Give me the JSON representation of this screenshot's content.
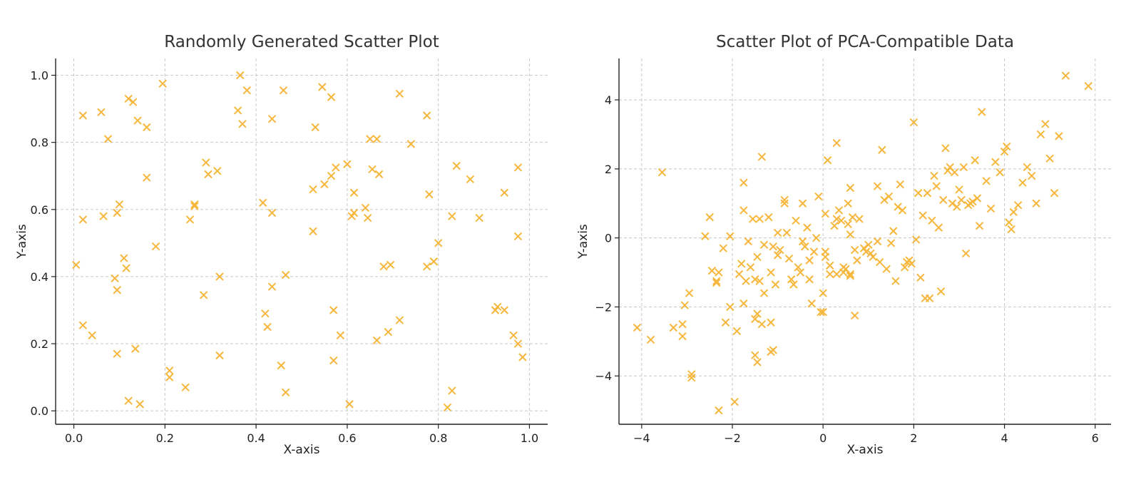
{
  "colors": {
    "marker": "#f6b73c",
    "grid": "#c8c8c8",
    "axis": "#222222",
    "title": "#333333"
  },
  "chart_data": [
    {
      "type": "scatter",
      "title": "Randomly Generated Scatter Plot",
      "xlabel": "X-axis",
      "ylabel": "Y-axis",
      "xlim": [
        -0.04,
        1.04
      ],
      "ylim": [
        -0.04,
        1.05
      ],
      "xticks": [
        0.0,
        0.2,
        0.4,
        0.6,
        0.8,
        1.0
      ],
      "yticks": [
        0.0,
        0.2,
        0.4,
        0.6,
        0.8,
        1.0
      ],
      "xtick_labels": [
        "0.0",
        "0.2",
        "0.4",
        "0.6",
        "0.8",
        "1.0"
      ],
      "ytick_labels": [
        "0.0",
        "0.2",
        "0.4",
        "0.6",
        "0.8",
        "1.0"
      ],
      "grid": true,
      "marker": "x",
      "points": [
        [
          0.005,
          0.435
        ],
        [
          0.02,
          0.88
        ],
        [
          0.02,
          0.57
        ],
        [
          0.02,
          0.255
        ],
        [
          0.04,
          0.225
        ],
        [
          0.06,
          0.89
        ],
        [
          0.065,
          0.58
        ],
        [
          0.075,
          0.81
        ],
        [
          0.09,
          0.395
        ],
        [
          0.095,
          0.59
        ],
        [
          0.095,
          0.36
        ],
        [
          0.095,
          0.17
        ],
        [
          0.1,
          0.615
        ],
        [
          0.11,
          0.455
        ],
        [
          0.115,
          0.425
        ],
        [
          0.12,
          0.93
        ],
        [
          0.13,
          0.92
        ],
        [
          0.12,
          0.03
        ],
        [
          0.135,
          0.185
        ],
        [
          0.14,
          0.865
        ],
        [
          0.145,
          0.02
        ],
        [
          0.16,
          0.845
        ],
        [
          0.16,
          0.695
        ],
        [
          0.18,
          0.49
        ],
        [
          0.195,
          0.975
        ],
        [
          0.21,
          0.12
        ],
        [
          0.21,
          0.1
        ],
        [
          0.245,
          0.07
        ],
        [
          0.255,
          0.57
        ],
        [
          0.265,
          0.615
        ],
        [
          0.265,
          0.61
        ],
        [
          0.285,
          0.345
        ],
        [
          0.29,
          0.74
        ],
        [
          0.295,
          0.705
        ],
        [
          0.315,
          0.715
        ],
        [
          0.32,
          0.4
        ],
        [
          0.32,
          0.165
        ],
        [
          0.36,
          0.895
        ],
        [
          0.365,
          1.0
        ],
        [
          0.37,
          0.855
        ],
        [
          0.38,
          0.955
        ],
        [
          0.415,
          0.62
        ],
        [
          0.42,
          0.29
        ],
        [
          0.425,
          0.25
        ],
        [
          0.435,
          0.87
        ],
        [
          0.435,
          0.59
        ],
        [
          0.435,
          0.37
        ],
        [
          0.455,
          0.135
        ],
        [
          0.46,
          0.955
        ],
        [
          0.465,
          0.405
        ],
        [
          0.465,
          0.055
        ],
        [
          0.525,
          0.66
        ],
        [
          0.525,
          0.535
        ],
        [
          0.53,
          0.845
        ],
        [
          0.545,
          0.965
        ],
        [
          0.55,
          0.675
        ],
        [
          0.565,
          0.935
        ],
        [
          0.565,
          0.7
        ],
        [
          0.57,
          0.3
        ],
        [
          0.57,
          0.15
        ],
        [
          0.575,
          0.725
        ],
        [
          0.585,
          0.225
        ],
        [
          0.6,
          0.735
        ],
        [
          0.605,
          0.02
        ],
        [
          0.61,
          0.58
        ],
        [
          0.615,
          0.59
        ],
        [
          0.615,
          0.65
        ],
        [
          0.64,
          0.605
        ],
        [
          0.645,
          0.575
        ],
        [
          0.65,
          0.81
        ],
        [
          0.655,
          0.72
        ],
        [
          0.665,
          0.81
        ],
        [
          0.67,
          0.705
        ],
        [
          0.665,
          0.21
        ],
        [
          0.68,
          0.43
        ],
        [
          0.69,
          0.235
        ],
        [
          0.695,
          0.435
        ],
        [
          0.715,
          0.945
        ],
        [
          0.715,
          0.27
        ],
        [
          0.74,
          0.795
        ],
        [
          0.775,
          0.88
        ],
        [
          0.775,
          0.43
        ],
        [
          0.78,
          0.645
        ],
        [
          0.79,
          0.445
        ],
        [
          0.8,
          0.5
        ],
        [
          0.82,
          0.01
        ],
        [
          0.83,
          0.06
        ],
        [
          0.83,
          0.58
        ],
        [
          0.84,
          0.73
        ],
        [
          0.87,
          0.69
        ],
        [
          0.89,
          0.575
        ],
        [
          0.925,
          0.3
        ],
        [
          0.93,
          0.31
        ],
        [
          0.945,
          0.3
        ],
        [
          0.945,
          0.65
        ],
        [
          0.965,
          0.225
        ],
        [
          0.975,
          0.2
        ],
        [
          0.975,
          0.725
        ],
        [
          0.975,
          0.52
        ],
        [
          0.985,
          0.16
        ]
      ]
    },
    {
      "type": "scatter",
      "title": "Scatter Plot of PCA-Compatible Data",
      "xlabel": "X-axis",
      "ylabel": "Y-axis",
      "xlim": [
        -4.5,
        6.35
      ],
      "ylim": [
        -5.4,
        5.2
      ],
      "xticks": [
        -4,
        -2,
        0,
        2,
        4,
        6
      ],
      "yticks": [
        -4,
        -2,
        0,
        2,
        4
      ],
      "xtick_labels": [
        "−4",
        "−2",
        "0",
        "2",
        "4",
        "6"
      ],
      "ytick_labels": [
        "−4",
        "−2",
        "0",
        "2",
        "4"
      ],
      "grid": true,
      "marker": "x",
      "points": [
        [
          -4.1,
          -2.6
        ],
        [
          -3.8,
          -2.95
        ],
        [
          -3.55,
          1.9
        ],
        [
          -3.3,
          -2.6
        ],
        [
          -3.1,
          -2.5
        ],
        [
          -3.1,
          -2.85
        ],
        [
          -3.05,
          -1.95
        ],
        [
          -2.95,
          -1.6
        ],
        [
          -2.9,
          -3.95
        ],
        [
          -2.9,
          -4.05
        ],
        [
          -2.6,
          0.05
        ],
        [
          -2.5,
          0.6
        ],
        [
          -2.45,
          -0.95
        ],
        [
          -2.35,
          -1.25
        ],
        [
          -2.35,
          -1.3
        ],
        [
          -2.3,
          -5.0
        ],
        [
          -2.3,
          -1.0
        ],
        [
          -2.2,
          -0.3
        ],
        [
          -2.15,
          -2.45
        ],
        [
          -2.05,
          0.05
        ],
        [
          -2.05,
          -2.0
        ],
        [
          -1.95,
          -4.75
        ],
        [
          -1.9,
          -2.7
        ],
        [
          -1.85,
          -1.05
        ],
        [
          -1.8,
          -0.75
        ],
        [
          -1.75,
          0.8
        ],
        [
          -1.75,
          1.6
        ],
        [
          -1.75,
          -1.9
        ],
        [
          -1.7,
          -1.25
        ],
        [
          -1.65,
          -0.1
        ],
        [
          -1.6,
          -0.85
        ],
        [
          -1.55,
          0.55
        ],
        [
          -1.5,
          -2.35
        ],
        [
          -1.5,
          -1.2
        ],
        [
          -1.5,
          -3.4
        ],
        [
          -1.45,
          -3.6
        ],
        [
          -1.45,
          -2.2
        ],
        [
          -1.45,
          -0.55
        ],
        [
          -1.4,
          0.55
        ],
        [
          -1.4,
          -1.25
        ],
        [
          -1.35,
          2.35
        ],
        [
          -1.35,
          -2.5
        ],
        [
          -1.3,
          -1.6
        ],
        [
          -1.3,
          -0.2
        ],
        [
          -1.2,
          0.6
        ],
        [
          -1.15,
          -1.0
        ],
        [
          -1.15,
          -2.45
        ],
        [
          -1.15,
          -3.3
        ],
        [
          -1.1,
          -3.25
        ],
        [
          -1.1,
          -0.25
        ],
        [
          -1.05,
          -1.35
        ],
        [
          -1.0,
          -0.5
        ],
        [
          -1.0,
          0.15
        ],
        [
          -0.95,
          -0.35
        ],
        [
          -0.85,
          1.0
        ],
        [
          -0.85,
          1.1
        ],
        [
          -0.8,
          0.15
        ],
        [
          -0.75,
          -0.6
        ],
        [
          -0.7,
          -1.2
        ],
        [
          -0.65,
          -1.35
        ],
        [
          -0.6,
          0.5
        ],
        [
          -0.55,
          -0.85
        ],
        [
          -0.5,
          -1.0
        ],
        [
          -0.45,
          1.0
        ],
        [
          -0.45,
          -0.1
        ],
        [
          -0.4,
          -0.25
        ],
        [
          -0.35,
          0.3
        ],
        [
          -0.3,
          -1.2
        ],
        [
          -0.3,
          -0.65
        ],
        [
          -0.25,
          -1.9
        ],
        [
          -0.2,
          -0.4
        ],
        [
          -0.15,
          0.0
        ],
        [
          -0.1,
          1.2
        ],
        [
          -0.05,
          -2.15
        ],
        [
          0.0,
          -2.15
        ],
        [
          0.0,
          -1.6
        ],
        [
          0.05,
          0.7
        ],
        [
          0.05,
          -0.55
        ],
        [
          0.05,
          -0.4
        ],
        [
          0.1,
          2.25
        ],
        [
          0.15,
          -1.05
        ],
        [
          0.15,
          -0.8
        ],
        [
          0.25,
          0.35
        ],
        [
          0.3,
          -1.05
        ],
        [
          0.3,
          2.75
        ],
        [
          0.3,
          0.55
        ],
        [
          0.35,
          0.8
        ],
        [
          0.4,
          0.5
        ],
        [
          0.45,
          -1.0
        ],
        [
          0.45,
          -0.85
        ],
        [
          0.5,
          -0.9
        ],
        [
          0.55,
          1.0
        ],
        [
          0.55,
          0.4
        ],
        [
          0.6,
          1.45
        ],
        [
          0.6,
          0.1
        ],
        [
          0.6,
          -1.05
        ],
        [
          0.6,
          -1.1
        ],
        [
          0.65,
          0.6
        ],
        [
          0.7,
          -2.25
        ],
        [
          0.7,
          -0.35
        ],
        [
          0.75,
          -0.65
        ],
        [
          0.8,
          0.55
        ],
        [
          0.9,
          -0.3
        ],
        [
          0.95,
          -0.4
        ],
        [
          1.0,
          -0.2
        ],
        [
          1.05,
          -0.45
        ],
        [
          1.1,
          -0.55
        ],
        [
          1.2,
          -0.1
        ],
        [
          1.2,
          1.5
        ],
        [
          1.25,
          -0.7
        ],
        [
          1.3,
          2.55
        ],
        [
          1.35,
          1.1
        ],
        [
          1.4,
          -0.9
        ],
        [
          1.45,
          1.2
        ],
        [
          1.5,
          -0.15
        ],
        [
          1.55,
          0.2
        ],
        [
          1.6,
          -1.25
        ],
        [
          1.65,
          0.9
        ],
        [
          1.7,
          1.55
        ],
        [
          1.75,
          0.8
        ],
        [
          1.8,
          -0.85
        ],
        [
          1.85,
          -0.7
        ],
        [
          1.9,
          -0.65
        ],
        [
          1.95,
          -0.75
        ],
        [
          2.0,
          3.35
        ],
        [
          2.05,
          -0.05
        ],
        [
          2.1,
          1.3
        ],
        [
          2.15,
          -1.15
        ],
        [
          2.2,
          0.65
        ],
        [
          2.25,
          -1.75
        ],
        [
          2.3,
          1.3
        ],
        [
          2.35,
          -1.75
        ],
        [
          2.4,
          0.5
        ],
        [
          2.45,
          1.8
        ],
        [
          2.5,
          1.5
        ],
        [
          2.55,
          0.3
        ],
        [
          2.6,
          -1.55
        ],
        [
          2.65,
          1.1
        ],
        [
          2.7,
          2.6
        ],
        [
          2.75,
          1.95
        ],
        [
          2.8,
          2.05
        ],
        [
          2.85,
          1.0
        ],
        [
          2.9,
          1.9
        ],
        [
          2.95,
          0.9
        ],
        [
          3.0,
          1.4
        ],
        [
          3.05,
          1.1
        ],
        [
          3.1,
          2.05
        ],
        [
          3.15,
          -0.45
        ],
        [
          3.2,
          0.95
        ],
        [
          3.25,
          1.0
        ],
        [
          3.3,
          1.05
        ],
        [
          3.35,
          2.25
        ],
        [
          3.4,
          1.15
        ],
        [
          3.45,
          0.35
        ],
        [
          3.5,
          3.65
        ],
        [
          3.6,
          1.65
        ],
        [
          3.7,
          0.85
        ],
        [
          3.8,
          2.2
        ],
        [
          3.9,
          1.9
        ],
        [
          4.0,
          2.5
        ],
        [
          4.05,
          2.65
        ],
        [
          4.1,
          0.45
        ],
        [
          4.15,
          0.25
        ],
        [
          4.2,
          0.75
        ],
        [
          4.3,
          0.95
        ],
        [
          4.4,
          1.6
        ],
        [
          4.5,
          2.05
        ],
        [
          4.6,
          1.8
        ],
        [
          4.7,
          1.0
        ],
        [
          4.8,
          3.0
        ],
        [
          4.9,
          3.3
        ],
        [
          5.0,
          2.3
        ],
        [
          5.1,
          1.3
        ],
        [
          5.2,
          2.95
        ],
        [
          5.35,
          4.7
        ],
        [
          5.85,
          4.4
        ]
      ]
    }
  ]
}
